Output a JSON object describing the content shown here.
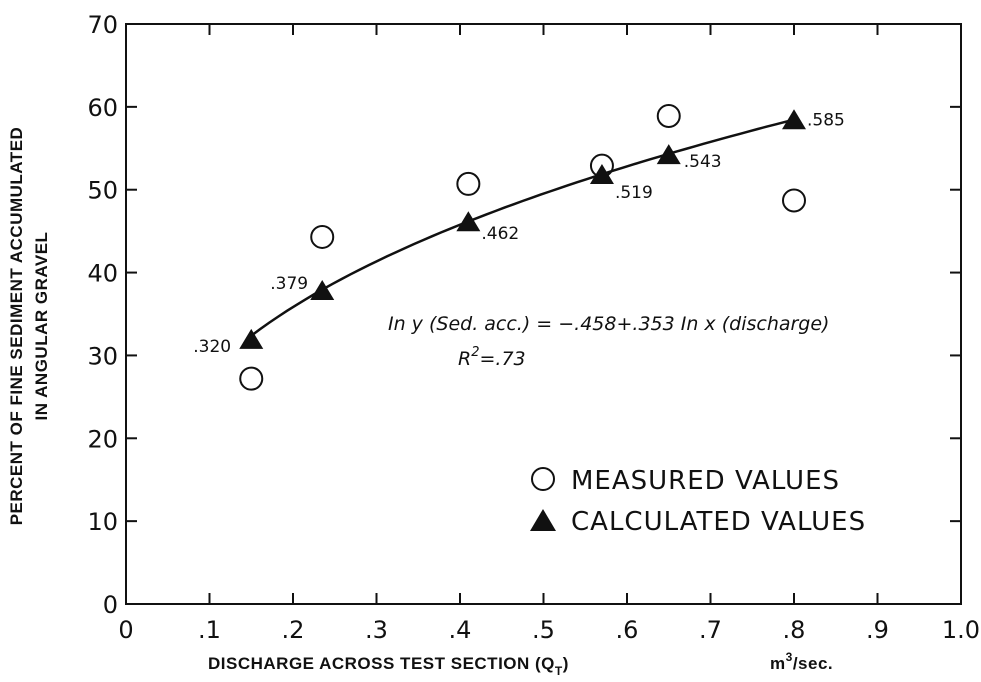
{
  "chart_data": {
    "type": "scatter",
    "xlabel": "DISCHARGE ACROSS TEST SECTION (Q",
    "xlabel_sub": "T",
    "xlabel_close": ")",
    "xlabel_unit": "m",
    "xlabel_unit_sup": "3",
    "xlabel_unit_tail": "/sec.",
    "ylabel_line1": "PERCENT OF FINE SEDIMENT ACCUMULATED",
    "ylabel_line2": "IN ANGULAR GRAVEL",
    "xlim": [
      0,
      1.0
    ],
    "ylim": [
      0,
      70
    ],
    "x_ticks": [
      0,
      0.1,
      0.2,
      0.3,
      0.4,
      0.5,
      0.6,
      0.7,
      0.8,
      0.9,
      1.0
    ],
    "x_tick_labels": [
      "0",
      ".1",
      ".2",
      ".3",
      ".4",
      ".5",
      ".6",
      ".7",
      ".8",
      ".9",
      "1.0"
    ],
    "y_ticks": [
      0,
      10,
      20,
      30,
      40,
      50,
      60,
      70
    ],
    "y_tick_labels": [
      "0",
      "10",
      "20",
      "30",
      "40",
      "50",
      "60",
      "70"
    ],
    "series": [
      {
        "name": "MEASURED VALUES",
        "marker": "open-circle",
        "x": [
          0.15,
          0.235,
          0.41,
          0.57,
          0.65,
          0.8
        ],
        "y": [
          27.2,
          44.3,
          50.7,
          52.9,
          58.9,
          48.7
        ]
      },
      {
        "name": "CALCULATED VALUES",
        "marker": "filled-triangle",
        "x": [
          0.15,
          0.235,
          0.41,
          0.57,
          0.65,
          0.8
        ],
        "y": [
          32.0,
          37.9,
          46.2,
          51.9,
          54.3,
          58.5
        ],
        "labels": [
          ".320",
          ".379",
          ".462",
          ".519",
          ".543",
          ".585"
        ]
      }
    ],
    "fit_curve": {
      "formula": "y = exp(-0.458) * x^0.353",
      "x_range": [
        0.15,
        0.8
      ]
    },
    "equation_line1_a": "In y (Sed. acc.) = −.458+.353  In x (discharge)",
    "equation_line2_a": "R",
    "equation_line2_sup": "2",
    "equation_line2_b": "=.73",
    "legend_position": "lower-right"
  }
}
